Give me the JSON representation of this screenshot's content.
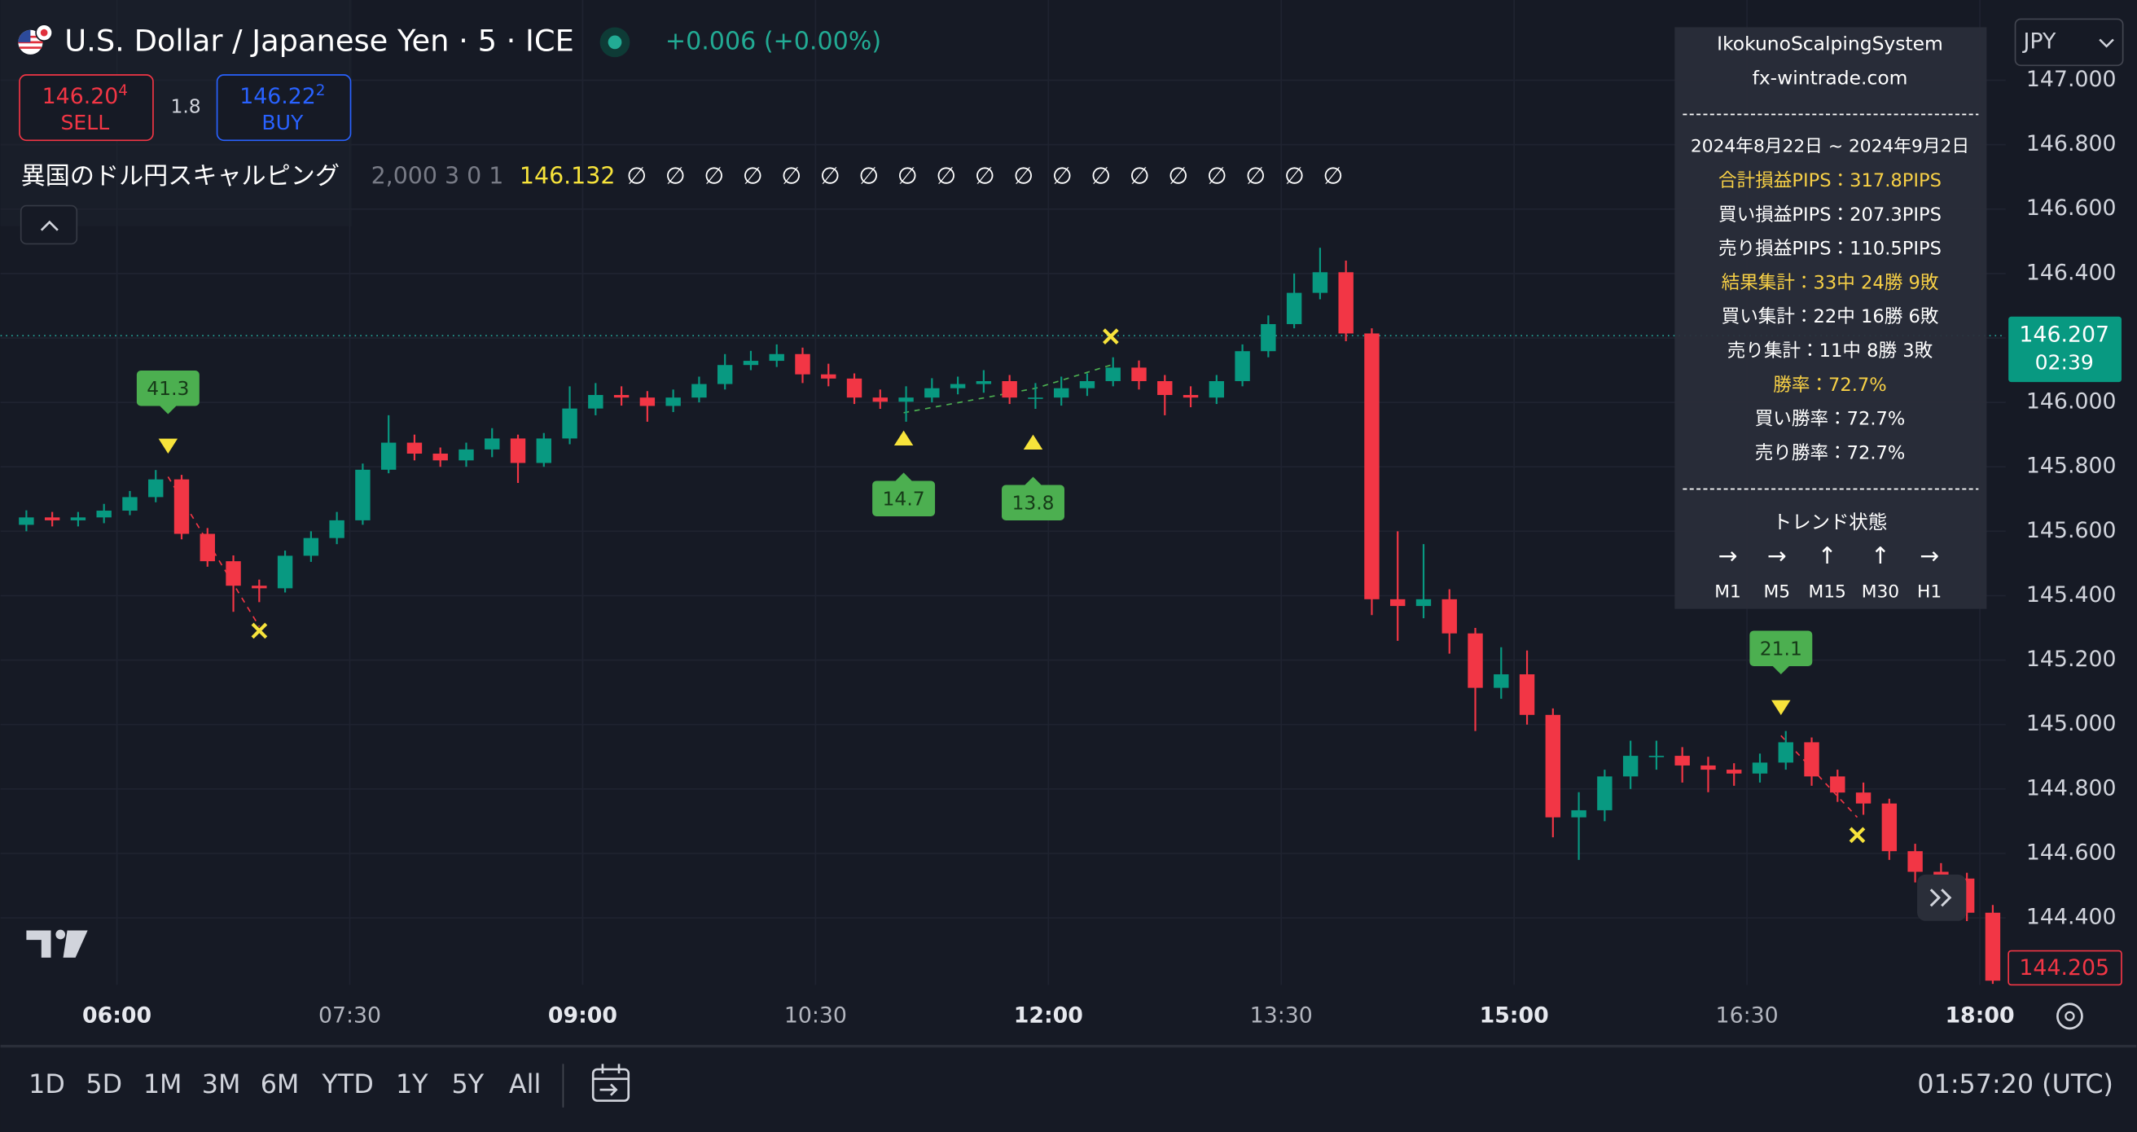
{
  "header": {
    "title": "U.S. Dollar / Japanese Yen · 5 · ICE",
    "change": "+0.006 (+0.00%)",
    "sell": {
      "big": "146.20",
      "small": "4",
      "label": "SELL"
    },
    "spread": "1.8",
    "buy": {
      "big": "146.22",
      "small": "2",
      "label": "BUY"
    },
    "currency": "JPY"
  },
  "indicator": {
    "name": "異国のドル円スキャルピング",
    "params": "2,000 3 0 1",
    "value": "146.132",
    "symbols": [
      "∅",
      "∅",
      "∅",
      "∅",
      "∅",
      "∅",
      "∅",
      "∅",
      "∅",
      "∅",
      "∅",
      "∅",
      "∅",
      "∅",
      "∅",
      "∅",
      "∅",
      "∅",
      "∅"
    ]
  },
  "info_panel": {
    "title": "IkokunoScalpingSystem",
    "site": "fx-wintrade.com",
    "period": "2024年8月22日 ~ 2024年9月2日",
    "lines": [
      {
        "text": "合計損益PIPS：317.8PIPS",
        "color": "#f7d046"
      },
      {
        "text": "買い損益PIPS：207.3PIPS",
        "color": "#ffffff"
      },
      {
        "text": "売り損益PIPS：110.5PIPS",
        "color": "#ffffff"
      },
      {
        "text": "結果集計：33中 24勝 9敗",
        "color": "#f7d046"
      },
      {
        "text": "買い集計：22中 16勝 6敗",
        "color": "#ffffff"
      },
      {
        "text": "売り集計：11中 8勝 3敗",
        "color": "#ffffff"
      },
      {
        "text": "勝率：72.7%",
        "color": "#f7d046"
      },
      {
        "text": "買い勝率：72.7%",
        "color": "#ffffff"
      },
      {
        "text": "売り勝率：72.7%",
        "color": "#ffffff"
      }
    ],
    "trend_title": "トレンド状態",
    "trend": [
      {
        "arrow": "→",
        "tf": "M1"
      },
      {
        "arrow": "→",
        "tf": "M5"
      },
      {
        "arrow": "↑",
        "tf": "M15"
      },
      {
        "arrow": "↑",
        "tf": "M30"
      },
      {
        "arrow": "→",
        "tf": "H1"
      }
    ]
  },
  "chart_data": {
    "type": "candlestick",
    "up_color": "#089981",
    "down_color": "#f23645",
    "grid": true,
    "x": [
      "05:25",
      "05:35",
      "05:45",
      "05:55",
      "06:05",
      "06:15",
      "06:25",
      "06:35",
      "06:45",
      "06:55",
      "07:05",
      "07:15",
      "07:25",
      "07:35",
      "07:45",
      "07:55",
      "08:05",
      "08:15",
      "08:25",
      "08:35",
      "08:45",
      "08:55",
      "09:05",
      "09:15",
      "09:25",
      "09:35",
      "09:45",
      "09:55",
      "10:05",
      "10:15",
      "10:25",
      "10:35",
      "10:45",
      "10:55",
      "11:05",
      "11:15",
      "11:25",
      "11:35",
      "11:45",
      "11:55",
      "12:05",
      "12:15",
      "12:25",
      "12:35",
      "12:45",
      "12:55",
      "13:05",
      "13:15",
      "13:25",
      "13:35",
      "13:45",
      "13:55",
      "14:05",
      "14:15",
      "14:25",
      "14:35",
      "14:45",
      "14:55",
      "15:05",
      "15:15",
      "15:25",
      "15:35",
      "15:45",
      "15:55",
      "16:05",
      "16:15",
      "16:25",
      "16:35",
      "16:45",
      "16:55",
      "17:05",
      "17:15",
      "17:25",
      "17:35",
      "17:45",
      "17:55",
      "18:05"
    ],
    "open": [
      145.62,
      145.643,
      145.634,
      145.643,
      145.664,
      145.706,
      145.761,
      145.592,
      145.507,
      145.431,
      145.423,
      145.524,
      145.579,
      145.634,
      145.791,
      145.875,
      145.841,
      145.82,
      145.854,
      145.888,
      145.812,
      145.888,
      145.981,
      146.023,
      146.015,
      145.989,
      146.015,
      146.057,
      146.116,
      146.129,
      146.15,
      146.087,
      146.074,
      146.015,
      146.002,
      146.015,
      146.044,
      146.057,
      146.066,
      146.015,
      146.015,
      146.044,
      146.066,
      146.108,
      146.066,
      146.023,
      146.015,
      146.066,
      146.159,
      146.243,
      146.34,
      146.404,
      146.214,
      145.389,
      145.368,
      145.389,
      145.283,
      145.114,
      145.156,
      145.03,
      144.712,
      144.734,
      144.839,
      144.903,
      144.903,
      144.873,
      144.86,
      144.848,
      144.882,
      144.945,
      144.839,
      144.789,
      144.755,
      144.607,
      144.543,
      144.522,
      144.416
    ],
    "high": [
      145.665,
      145.66,
      145.66,
      145.685,
      145.725,
      145.79,
      145.775,
      145.61,
      145.525,
      145.45,
      145.54,
      145.6,
      145.66,
      145.81,
      145.96,
      145.9,
      145.86,
      145.875,
      145.92,
      145.9,
      145.905,
      146.05,
      146.06,
      146.05,
      146.035,
      146.04,
      146.08,
      146.15,
      146.16,
      146.18,
      146.17,
      146.12,
      146.09,
      146.04,
      146.05,
      146.075,
      146.08,
      146.1,
      146.085,
      146.06,
      146.08,
      146.09,
      146.14,
      146.13,
      146.085,
      146.05,
      146.085,
      146.18,
      146.27,
      146.4,
      146.48,
      146.44,
      146.23,
      145.6,
      145.56,
      145.42,
      145.3,
      145.24,
      145.23,
      145.05,
      144.79,
      144.86,
      144.95,
      144.95,
      144.93,
      144.9,
      144.88,
      144.91,
      144.98,
      144.96,
      144.86,
      144.82,
      144.77,
      144.63,
      144.57,
      144.54,
      144.44
    ],
    "low": [
      145.6,
      145.615,
      145.615,
      145.625,
      145.65,
      145.69,
      145.575,
      145.49,
      145.35,
      145.38,
      145.41,
      145.505,
      145.56,
      145.62,
      145.78,
      145.82,
      145.8,
      145.8,
      145.83,
      145.75,
      145.8,
      145.87,
      145.96,
      145.99,
      145.94,
      145.97,
      146.0,
      146.04,
      146.1,
      146.11,
      146.06,
      146.05,
      145.995,
      145.98,
      145.94,
      146.0,
      146.025,
      146.03,
      145.995,
      145.98,
      145.99,
      146.02,
      146.05,
      146.04,
      145.96,
      145.985,
      145.995,
      146.05,
      146.14,
      146.23,
      146.32,
      146.19,
      145.34,
      145.26,
      145.33,
      145.22,
      144.98,
      145.08,
      145.0,
      144.65,
      144.58,
      144.7,
      144.8,
      144.86,
      144.82,
      144.79,
      144.81,
      144.82,
      144.86,
      144.81,
      144.76,
      144.72,
      144.58,
      144.51,
      144.49,
      144.39,
      144.195
    ],
    "close": [
      145.643,
      145.634,
      145.643,
      145.664,
      145.706,
      145.761,
      145.592,
      145.507,
      145.431,
      145.423,
      145.524,
      145.579,
      145.634,
      145.791,
      145.875,
      145.841,
      145.82,
      145.854,
      145.888,
      145.812,
      145.888,
      145.981,
      146.023,
      146.015,
      145.989,
      146.015,
      146.057,
      146.116,
      146.129,
      146.15,
      146.087,
      146.074,
      146.015,
      146.002,
      146.015,
      146.044,
      146.057,
      146.066,
      146.015,
      146.015,
      146.044,
      146.066,
      146.108,
      146.066,
      146.023,
      146.015,
      146.066,
      146.159,
      146.243,
      146.34,
      146.404,
      146.214,
      145.389,
      145.368,
      145.389,
      145.283,
      145.114,
      145.156,
      145.03,
      144.712,
      144.734,
      144.839,
      144.903,
      144.903,
      144.873,
      144.86,
      144.848,
      144.882,
      144.945,
      144.839,
      144.789,
      144.755,
      144.607,
      144.543,
      144.522,
      144.416,
      144.205
    ],
    "xlim": [
      "05:15",
      "18:10"
    ],
    "xticks": [
      "06:00",
      "07:30",
      "09:00",
      "10:30",
      "12:00",
      "13:30",
      "15:00",
      "16:30",
      "18:00"
    ],
    "ylim": [
      144.192,
      147.249
    ],
    "yticks": [
      {
        "value": 147,
        "label": "147.000"
      },
      {
        "value": 146.8,
        "label": "146.800"
      },
      {
        "value": 146.6,
        "label": "146.600"
      },
      {
        "value": 146.4,
        "label": "146.400"
      },
      {
        "value": 146.2,
        "label": "146.200"
      },
      {
        "value": 146,
        "label": "146.000"
      },
      {
        "value": 145.8,
        "label": "145.800"
      },
      {
        "value": 145.6,
        "label": "145.600"
      },
      {
        "value": 145.4,
        "label": "145.400"
      },
      {
        "value": 145.2,
        "label": "145.200"
      },
      {
        "value": 145,
        "label": "145.000"
      },
      {
        "value": 144.8,
        "label": "144.800"
      },
      {
        "value": 144.6,
        "label": "144.600"
      },
      {
        "value": 144.4,
        "label": "144.400"
      }
    ],
    "current_price": 146.207,
    "countdown": "02:39",
    "last_price": 144.205,
    "annotations": [
      "41.3",
      "14.7",
      "13.8",
      "21.1"
    ]
  },
  "toolbar": {
    "ranges": [
      "1D",
      "5D",
      "1M",
      "3M",
      "6M",
      "YTD",
      "1Y",
      "5Y",
      "All"
    ],
    "clock": "01:57:20 (UTC)"
  }
}
